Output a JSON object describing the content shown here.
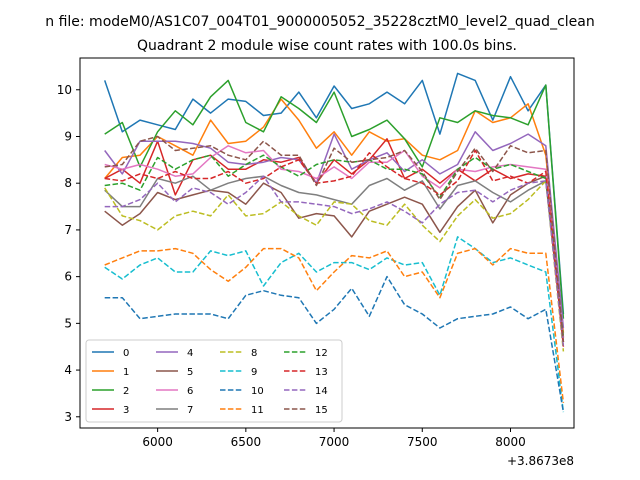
{
  "chart_data": {
    "type": "line",
    "suptitle": "n file: modeM0/AS1C07_004T01_9000005052_35228cztM0_level2_quad_clean",
    "title": "Quadrant 2 module wise count rates with 100.0s bins.",
    "xlabel": "",
    "ylabel": "",
    "x_offset_label": "+3.8673e8",
    "xlim": [
      5560,
      8360
    ],
    "ylim": [
      2.76,
      10.68
    ],
    "xticks": [
      6000,
      6500,
      7000,
      7500,
      8000
    ],
    "yticks": [
      3,
      4,
      5,
      6,
      7,
      8,
      9,
      10
    ],
    "legend": {
      "location": "lower-left",
      "columns": 4
    },
    "x": [
      5700,
      5800,
      5900,
      6000,
      6100,
      6200,
      6300,
      6400,
      6500,
      6600,
      6700,
      6800,
      6900,
      7000,
      7100,
      7200,
      7300,
      7400,
      7500,
      7600,
      7700,
      7800,
      7900,
      8000,
      8100,
      8200,
      8300
    ],
    "series": [
      {
        "name": "0",
        "color": "#1f77b4",
        "style": "solid",
        "values": [
          10.2,
          9.1,
          9.35,
          9.25,
          9.15,
          9.8,
          9.5,
          9.8,
          9.75,
          9.45,
          9.5,
          9.95,
          9.4,
          10.08,
          9.6,
          9.7,
          9.95,
          9.7,
          10.2,
          9.05,
          10.35,
          10.2,
          9.35,
          10.28,
          9.55,
          10.1,
          5.2
        ]
      },
      {
        "name": "1",
        "color": "#ff7f0e",
        "style": "solid",
        "values": [
          8.1,
          8.55,
          8.6,
          9.0,
          8.8,
          8.6,
          9.35,
          8.85,
          8.9,
          9.2,
          9.8,
          9.35,
          8.75,
          9.1,
          8.6,
          9.1,
          8.9,
          8.95,
          8.6,
          8.5,
          8.7,
          9.55,
          9.3,
          9.4,
          9.7,
          8.6,
          4.8
        ]
      },
      {
        "name": "2",
        "color": "#2ca02c",
        "style": "solid",
        "values": [
          9.05,
          9.3,
          8.35,
          9.1,
          9.55,
          9.25,
          9.85,
          10.2,
          9.3,
          9.1,
          9.85,
          9.6,
          9.3,
          9.95,
          9.0,
          9.15,
          9.35,
          8.95,
          8.35,
          9.4,
          9.3,
          9.55,
          9.45,
          9.4,
          9.25,
          10.1,
          5.1
        ]
      },
      {
        "name": "3",
        "color": "#d62728",
        "style": "solid",
        "values": [
          8.1,
          8.3,
          8.0,
          8.9,
          7.75,
          8.5,
          8.6,
          8.3,
          8.3,
          8.5,
          8.45,
          8.55,
          8.0,
          8.5,
          8.2,
          8.5,
          8.95,
          8.1,
          8.3,
          8.0,
          8.3,
          8.05,
          8.3,
          8.1,
          8.2,
          8.15,
          4.6
        ]
      },
      {
        "name": "4",
        "color": "#9467bd",
        "style": "solid",
        "values": [
          8.7,
          8.2,
          8.9,
          8.9,
          8.9,
          8.85,
          8.75,
          8.45,
          8.4,
          8.45,
          8.55,
          8.5,
          8.0,
          9.05,
          8.3,
          8.5,
          8.65,
          8.25,
          8.5,
          8.2,
          8.4,
          9.1,
          8.7,
          8.85,
          9.05,
          8.8,
          4.9
        ]
      },
      {
        "name": "5",
        "color": "#8c564b",
        "style": "solid",
        "values": [
          7.4,
          7.1,
          7.35,
          7.8,
          7.65,
          7.75,
          7.85,
          7.8,
          7.55,
          8.0,
          7.8,
          7.25,
          7.35,
          7.3,
          6.85,
          7.4,
          7.55,
          7.7,
          7.55,
          6.95,
          7.5,
          7.85,
          7.15,
          7.75,
          8.0,
          8.15,
          4.7
        ]
      },
      {
        "name": "6",
        "color": "#e377c2",
        "style": "solid",
        "values": [
          8.4,
          8.3,
          8.4,
          8.3,
          8.15,
          8.2,
          8.55,
          8.8,
          8.65,
          8.7,
          8.3,
          8.25,
          8.1,
          8.35,
          8.1,
          8.45,
          8.45,
          8.7,
          8.15,
          7.9,
          8.3,
          8.25,
          8.35,
          8.4,
          8.35,
          8.3,
          4.7
        ]
      },
      {
        "name": "7",
        "color": "#7f7f7f",
        "style": "solid",
        "values": [
          7.85,
          7.5,
          7.5,
          8.1,
          8.0,
          8.15,
          7.85,
          8.0,
          8.1,
          8.15,
          7.95,
          7.8,
          7.75,
          7.65,
          7.55,
          7.95,
          8.1,
          7.85,
          8.05,
          7.45,
          7.95,
          8.05,
          7.8,
          7.6,
          7.85,
          8.05,
          4.6
        ]
      },
      {
        "name": "8",
        "color": "#bcbd22",
        "style": "dashed",
        "values": [
          7.9,
          7.3,
          7.2,
          7.0,
          7.3,
          7.4,
          7.3,
          7.75,
          7.3,
          7.35,
          7.6,
          7.3,
          7.1,
          7.6,
          7.55,
          7.2,
          7.1,
          7.55,
          7.1,
          6.75,
          7.3,
          7.65,
          7.25,
          7.35,
          7.65,
          8.05,
          4.4
        ]
      },
      {
        "name": "9",
        "color": "#17becf",
        "style": "dashed",
        "values": [
          6.2,
          5.95,
          6.25,
          6.4,
          6.1,
          6.1,
          6.55,
          6.45,
          6.55,
          5.8,
          6.3,
          6.5,
          6.1,
          6.3,
          6.3,
          6.15,
          6.4,
          6.25,
          6.3,
          5.6,
          6.85,
          6.6,
          6.3,
          6.4,
          6.25,
          6.1,
          3.1
        ]
      },
      {
        "name": "10",
        "color": "#1f77b4",
        "style": "dashed",
        "values": [
          5.55,
          5.55,
          5.1,
          5.15,
          5.2,
          5.2,
          5.2,
          5.1,
          5.6,
          5.7,
          5.6,
          5.55,
          5.0,
          5.3,
          5.75,
          5.15,
          6.0,
          5.4,
          5.2,
          4.9,
          5.1,
          5.15,
          5.2,
          5.35,
          5.1,
          5.3,
          3.1
        ]
      },
      {
        "name": "11",
        "color": "#ff7f0e",
        "style": "dashed",
        "values": [
          6.25,
          6.4,
          6.55,
          6.55,
          6.6,
          6.5,
          6.15,
          5.9,
          6.2,
          6.6,
          6.6,
          6.4,
          5.7,
          6.1,
          6.45,
          6.4,
          6.55,
          6.0,
          6.1,
          5.55,
          6.5,
          6.6,
          6.25,
          6.6,
          6.5,
          6.5,
          3.3
        ]
      },
      {
        "name": "12",
        "color": "#2ca02c",
        "style": "dashed",
        "values": [
          7.95,
          8.0,
          7.85,
          8.55,
          8.3,
          8.5,
          8.6,
          8.15,
          8.4,
          8.6,
          8.35,
          8.15,
          8.4,
          8.5,
          8.45,
          8.5,
          8.3,
          8.3,
          8.2,
          7.7,
          8.3,
          8.55,
          8.3,
          8.4,
          8.25,
          8.1,
          4.7
        ]
      },
      {
        "name": "13",
        "color": "#d62728",
        "style": "dashed",
        "values": [
          8.1,
          8.05,
          8.2,
          8.1,
          8.25,
          8.1,
          8.1,
          8.25,
          8.0,
          8.1,
          8.35,
          8.5,
          8.0,
          8.05,
          8.15,
          8.65,
          8.35,
          8.1,
          8.0,
          7.75,
          8.05,
          8.7,
          8.05,
          8.15,
          8.0,
          8.25,
          4.5
        ]
      },
      {
        "name": "14",
        "color": "#9467bd",
        "style": "dashed",
        "values": [
          7.5,
          7.5,
          7.65,
          8.0,
          7.6,
          7.9,
          7.8,
          7.55,
          7.8,
          8.15,
          7.6,
          7.6,
          7.55,
          7.5,
          7.35,
          7.45,
          7.6,
          7.4,
          7.15,
          7.55,
          7.8,
          7.85,
          7.6,
          7.85,
          8.0,
          8.05,
          4.5
        ]
      },
      {
        "name": "15",
        "color": "#8c564b",
        "style": "dashed",
        "values": [
          8.35,
          8.4,
          8.9,
          9.0,
          8.7,
          8.75,
          8.8,
          8.6,
          8.5,
          8.9,
          8.6,
          8.6,
          7.95,
          8.75,
          8.45,
          8.5,
          8.55,
          8.7,
          8.25,
          7.65,
          8.25,
          8.75,
          8.25,
          8.8,
          8.65,
          8.7,
          4.6
        ]
      }
    ]
  }
}
